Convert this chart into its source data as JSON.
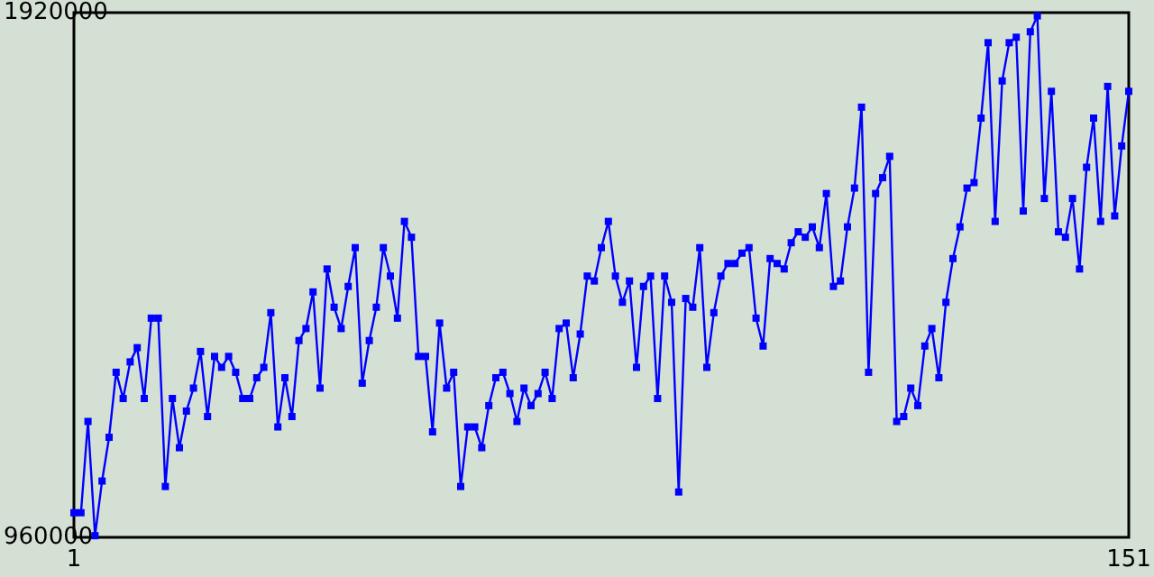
{
  "chart_data": {
    "type": "line",
    "marker": "square",
    "xlim": [
      1,
      151
    ],
    "xticks": [
      1,
      151
    ],
    "ylim": [
      960000,
      1920000
    ],
    "yticks": [
      960000,
      1920000
    ],
    "x": [
      1,
      2,
      3,
      4,
      5,
      6,
      7,
      8,
      9,
      10,
      11,
      12,
      13,
      14,
      15,
      16,
      17,
      18,
      19,
      20,
      21,
      22,
      23,
      24,
      25,
      26,
      27,
      28,
      29,
      30,
      31,
      32,
      33,
      34,
      35,
      36,
      37,
      38,
      39,
      40,
      41,
      42,
      43,
      44,
      45,
      46,
      47,
      48,
      49,
      50,
      51,
      52,
      53,
      54,
      55,
      56,
      57,
      58,
      59,
      60,
      61,
      62,
      63,
      64,
      65,
      66,
      67,
      68,
      69,
      70,
      71,
      72,
      73,
      74,
      75,
      76,
      77,
      78,
      79,
      80,
      81,
      82,
      83,
      84,
      85,
      86,
      87,
      88,
      89,
      90,
      91,
      92,
      93,
      94,
      95,
      96,
      97,
      98,
      99,
      100,
      101,
      102,
      103,
      104,
      105,
      106,
      107,
      108,
      109,
      110,
      111,
      112,
      113,
      114,
      115,
      116,
      117,
      118,
      119,
      120,
      121,
      122,
      123,
      124,
      125,
      126,
      127,
      128,
      129,
      130,
      131,
      132,
      133,
      134,
      135,
      136,
      137,
      138,
      139,
      140,
      141,
      142,
      143,
      144,
      145,
      146,
      147,
      148,
      149,
      150,
      151
    ],
    "series": [
      {
        "color": "#0000ff",
        "values": [
          1005000,
          1005000,
          1172000,
          963000,
          1063000,
          1143000,
          1262000,
          1214000,
          1281000,
          1307000,
          1214000,
          1361000,
          1361000,
          1053000,
          1214000,
          1124000,
          1191000,
          1233000,
          1300000,
          1181000,
          1291000,
          1271000,
          1291000,
          1262000,
          1214000,
          1214000,
          1252000,
          1271000,
          1371000,
          1162000,
          1252000,
          1181000,
          1320000,
          1342000,
          1409000,
          1233000,
          1451000,
          1381000,
          1342000,
          1419000,
          1490000,
          1242000,
          1320000,
          1381000,
          1490000,
          1438000,
          1361000,
          1538000,
          1509000,
          1291000,
          1291000,
          1153000,
          1352000,
          1233000,
          1262000,
          1053000,
          1162000,
          1162000,
          1124000,
          1201000,
          1252000,
          1262000,
          1223000,
          1172000,
          1233000,
          1201000,
          1223000,
          1262000,
          1214000,
          1342000,
          1352000,
          1252000,
          1332000,
          1438000,
          1429000,
          1490000,
          1538000,
          1438000,
          1390000,
          1429000,
          1271000,
          1419000,
          1438000,
          1214000,
          1438000,
          1390000,
          1043000,
          1397000,
          1381000,
          1490000,
          1271000,
          1371000,
          1438000,
          1461000,
          1461000,
          1480000,
          1490000,
          1361000,
          1310000,
          1470000,
          1461000,
          1451000,
          1499000,
          1519000,
          1509000,
          1528000,
          1490000,
          1589000,
          1419000,
          1429000,
          1528000,
          1599000,
          1747000,
          1262000,
          1589000,
          1618000,
          1657000,
          1172000,
          1181000,
          1233000,
          1201000,
          1310000,
          1342000,
          1252000,
          1390000,
          1470000,
          1528000,
          1599000,
          1609000,
          1727000,
          1865000,
          1538000,
          1795000,
          1865000,
          1875000,
          1557000,
          1885000,
          1914000,
          1580000,
          1776000,
          1519000,
          1509000,
          1580000,
          1451000,
          1637000,
          1727000,
          1538000,
          1785000,
          1548000,
          1676000,
          1776000
        ]
      }
    ]
  }
}
